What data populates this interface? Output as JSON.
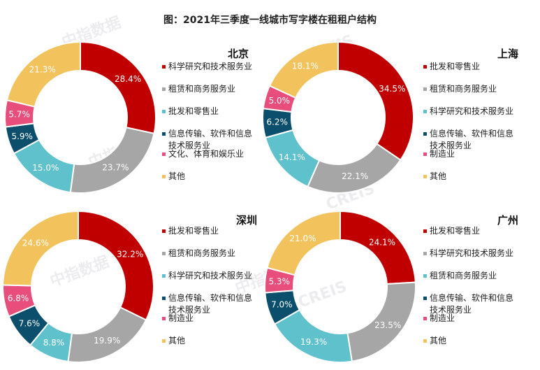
{
  "title": "图：2021年三季度一线城市写字楼在租租户结构",
  "watermark_texts": [
    "中指数据",
    "CREIS"
  ],
  "chart_data": [
    {
      "type": "pie",
      "donut": true,
      "city": "北京",
      "labels": [
        "科学研究和技术服务业",
        "租赁和商务服务业",
        "批发和零售业",
        "信息传输、软件和信息技术服务业",
        "文化、体育和娱乐业",
        "其他"
      ],
      "label_lines": [
        [
          "科学研究和技术服务业"
        ],
        [
          "租赁和商务服务业"
        ],
        [
          "批发和零售业"
        ],
        [
          "信息传输、软件和信息",
          "技术服务业"
        ],
        [
          "文化、体育和娱乐业"
        ],
        [
          "其他"
        ]
      ],
      "values": [
        28.4,
        23.7,
        15.0,
        5.9,
        5.7,
        21.3
      ],
      "value_labels": [
        "28.4%",
        "23.7%",
        "15.0%",
        "5.9%",
        "5.7%",
        "21.3%"
      ],
      "colors": [
        "#c00000",
        "#a6a6a6",
        "#5ec1cc",
        "#0b4f6c",
        "#e84e7b",
        "#f2c35c"
      ]
    },
    {
      "type": "pie",
      "donut": true,
      "city": "上海",
      "labels": [
        "批发和零售业",
        "租赁和商务服务业",
        "科学研究和技术服务业",
        "信息传输、软件和信息技术服务业",
        "制造业",
        "其他"
      ],
      "label_lines": [
        [
          "批发和零售业"
        ],
        [
          "租赁和商务服务业"
        ],
        [
          "科学研究和技术服务业"
        ],
        [
          "信息传输、软件和信息",
          "技术服务业"
        ],
        [
          "制造业"
        ],
        [
          "其他"
        ]
      ],
      "values": [
        34.5,
        22.1,
        14.1,
        6.2,
        5.0,
        18.1
      ],
      "value_labels": [
        "34.5%",
        "22.1%",
        "14.1%",
        "6.2%",
        "5.0%",
        "18.1%"
      ],
      "colors": [
        "#c00000",
        "#a6a6a6",
        "#5ec1cc",
        "#0b4f6c",
        "#e84e7b",
        "#f2c35c"
      ]
    },
    {
      "type": "pie",
      "donut": true,
      "city": "深圳",
      "labels": [
        "批发和零售业",
        "租赁和商务服务业",
        "科学研究和技术服务业",
        "信息传输、软件和信息技术服务业",
        "制造业",
        "其他"
      ],
      "label_lines": [
        [
          "批发和零售业"
        ],
        [
          "租赁和商务服务业"
        ],
        [
          "科学研究和技术服务业"
        ],
        [
          "信息传输、软件和信息",
          "技术服务业"
        ],
        [
          "制造业"
        ],
        [
          "其他"
        ]
      ],
      "values": [
        32.2,
        19.9,
        8.8,
        7.6,
        6.8,
        24.6
      ],
      "value_labels": [
        "32.2%",
        "19.9%",
        "8.8%",
        "7.6%",
        "6.8%",
        "24.6%"
      ],
      "colors": [
        "#c00000",
        "#a6a6a6",
        "#5ec1cc",
        "#0b4f6c",
        "#e84e7b",
        "#f2c35c"
      ]
    },
    {
      "type": "pie",
      "donut": true,
      "city": "广州",
      "labels": [
        "批发和零售业",
        "科学研究和技术服务业",
        "租赁和商务服务业",
        "信息传输、软件和信息技术服务业",
        "制造业",
        "其他"
      ],
      "label_lines": [
        [
          "批发和零售业"
        ],
        [
          "科学研究和技术服务业"
        ],
        [
          "租赁和商务服务业"
        ],
        [
          "信息传输、软件和信息",
          "技术服务业"
        ],
        [
          "制造业"
        ],
        [
          "其他"
        ]
      ],
      "values": [
        24.1,
        23.5,
        19.3,
        7.0,
        5.3,
        21.0
      ],
      "value_labels": [
        "24.1%",
        "23.5%",
        "19.3%",
        "7.0%",
        "5.3%",
        "21.0%"
      ],
      "colors": [
        "#c00000",
        "#a6a6a6",
        "#5ec1cc",
        "#0b4f6c",
        "#e84e7b",
        "#f2c35c"
      ]
    }
  ]
}
